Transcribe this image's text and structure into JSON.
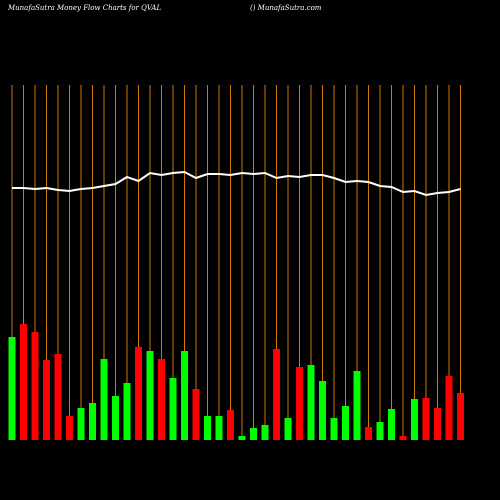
{
  "chart_data": {
    "type": "bar",
    "title": "MunafaSutra  Money Flow  Charts for QVAL",
    "subtitle": "() MunafaSutra.com",
    "categories": [
      null,
      null,
      null,
      null,
      null,
      null,
      null,
      null,
      null,
      null,
      null,
      null,
      null,
      null,
      null,
      null,
      null,
      null,
      null,
      null,
      null,
      null,
      null,
      null,
      null,
      null,
      null,
      null,
      null,
      null,
      null,
      null,
      null,
      null,
      null,
      null,
      null,
      null,
      null,
      null
    ],
    "ylim": [
      0,
      360
    ],
    "bar_values": [
      103,
      116,
      108,
      80,
      86,
      24,
      32,
      37,
      81,
      44,
      57,
      93,
      89,
      81,
      62,
      89,
      51,
      24,
      24,
      30,
      4,
      12,
      15,
      91,
      22,
      73,
      75,
      59,
      22,
      34,
      69,
      13,
      18,
      31,
      4,
      41,
      42,
      32,
      64,
      47
    ],
    "bar_colors": [
      "#00ff00",
      "#ff0000",
      "#ff0000",
      "#ff0000",
      "#ff0000",
      "#ff0000",
      "#00ff00",
      "#00ff00",
      "#00ff00",
      "#00ff00",
      "#00ff00",
      "#ff0000",
      "#00ff00",
      "#ff0000",
      "#00ff00",
      "#00ff00",
      "#ff0000",
      "#00ff00",
      "#00ff00",
      "#ff0000",
      "#00ff00",
      "#00ff00",
      "#00ff00",
      "#ff0000",
      "#00ff00",
      "#ff0000",
      "#00ff00",
      "#00ff00",
      "#00ff00",
      "#00ff00",
      "#00ff00",
      "#ff0000",
      "#00ff00",
      "#00ff00",
      "#ff0000",
      "#00ff00",
      "#ff0000",
      "#ff0000",
      "#ff0000",
      "#ff0000"
    ],
    "line_values": [
      252,
      252,
      251,
      252,
      250,
      249,
      251,
      252,
      254,
      256,
      263,
      259,
      267,
      265,
      267,
      268,
      262,
      266,
      266,
      265,
      267,
      266,
      267,
      262,
      264,
      263,
      265,
      265,
      262,
      258,
      259,
      258,
      254,
      253,
      248,
      249,
      245,
      247,
      248,
      251
    ],
    "line_color": "#ffffff",
    "vline_color": "#cc7a00"
  }
}
